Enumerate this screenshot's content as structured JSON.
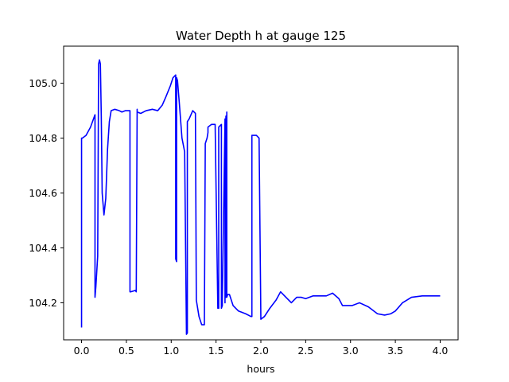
{
  "chart_data": {
    "type": "line",
    "title": "Water Depth h at gauge 125",
    "xlabel": "hours",
    "ylabel": "",
    "xlim": [
      -0.2,
      4.2
    ],
    "ylim": [
      104.065,
      105.135
    ],
    "xticks": [
      0.0,
      0.5,
      1.0,
      1.5,
      2.0,
      2.5,
      3.0,
      3.5,
      4.0
    ],
    "xtick_labels": [
      "0.0",
      "0.5",
      "1.0",
      "1.5",
      "2.0",
      "2.5",
      "3.0",
      "3.5",
      "4.0"
    ],
    "yticks": [
      104.2,
      104.4,
      104.6,
      104.8,
      105.0
    ],
    "ytick_labels": [
      "104.2",
      "104.4",
      "104.6",
      "104.8",
      "105.0"
    ],
    "grid": false,
    "series": [
      {
        "name": "",
        "color": "#0000ff",
        "x": [
          0.0,
          0.0,
          0.01,
          0.01,
          0.05,
          0.1,
          0.15,
          0.15,
          0.16,
          0.18,
          0.19,
          0.19,
          0.2,
          0.21,
          0.22,
          0.23,
          0.25,
          0.27,
          0.29,
          0.31,
          0.33,
          0.37,
          0.42,
          0.45,
          0.49,
          0.54,
          0.54,
          0.55,
          0.6,
          0.61,
          0.62,
          0.62,
          0.66,
          0.72,
          0.79,
          0.85,
          0.9,
          0.94,
          0.99,
          1.02,
          1.05,
          1.05,
          1.06,
          1.06,
          1.07,
          1.09,
          1.12,
          1.15,
          1.17,
          1.17,
          1.18,
          1.18,
          1.2,
          1.24,
          1.27,
          1.28,
          1.28,
          1.31,
          1.34,
          1.37,
          1.38,
          1.4,
          1.41,
          1.41,
          1.45,
          1.49,
          1.52,
          1.53,
          1.53,
          1.56,
          1.56,
          1.57,
          1.57,
          1.6,
          1.6,
          1.61,
          1.61,
          1.62,
          1.62,
          1.63,
          1.63,
          1.64,
          1.64,
          1.65,
          1.67,
          1.69,
          1.75,
          1.83,
          1.89,
          1.9,
          1.9,
          1.95,
          1.98,
          1.98,
          2.0,
          2.04,
          2.1,
          2.17,
          2.22,
          2.28,
          2.34,
          2.4,
          2.45,
          2.5,
          2.58,
          2.65,
          2.73,
          2.8,
          2.87,
          2.91,
          2.96,
          3.02,
          3.1,
          3.2,
          3.3,
          3.38,
          3.45,
          3.5,
          3.58,
          3.68,
          3.8,
          3.92,
          4.0
        ],
        "y": [
          104.11,
          104.8,
          104.8,
          104.8,
          104.81,
          104.84,
          104.885,
          104.22,
          104.26,
          104.37,
          105.06,
          105.07,
          105.085,
          105.07,
          104.88,
          104.6,
          104.52,
          104.58,
          104.76,
          104.86,
          104.9,
          104.905,
          104.9,
          104.895,
          104.9,
          104.9,
          104.24,
          104.24,
          104.245,
          104.24,
          104.905,
          104.895,
          104.89,
          104.9,
          104.905,
          104.9,
          104.92,
          104.95,
          104.99,
          105.02,
          105.03,
          104.36,
          104.35,
          105.02,
          105.01,
          104.93,
          104.8,
          104.75,
          104.085,
          104.085,
          104.09,
          104.86,
          104.87,
          104.9,
          104.89,
          104.22,
          104.21,
          104.15,
          104.12,
          104.12,
          104.78,
          104.8,
          104.82,
          104.84,
          104.85,
          104.85,
          104.18,
          104.18,
          104.84,
          104.85,
          104.18,
          104.19,
          104.205,
          104.87,
          104.2,
          104.88,
          104.22,
          104.895,
          104.22,
          104.23,
          104.23,
          104.23,
          104.23,
          104.23,
          104.21,
          104.19,
          104.17,
          104.16,
          104.15,
          104.15,
          104.81,
          104.81,
          104.8,
          104.8,
          104.14,
          104.15,
          104.18,
          104.21,
          104.24,
          104.22,
          104.2,
          104.22,
          104.22,
          104.215,
          104.225,
          104.225,
          104.225,
          104.235,
          104.215,
          104.19,
          104.19,
          104.19,
          104.2,
          104.185,
          104.16,
          104.155,
          104.16,
          104.17,
          104.2,
          104.22,
          104.225,
          104.225,
          104.225
        ]
      }
    ]
  }
}
